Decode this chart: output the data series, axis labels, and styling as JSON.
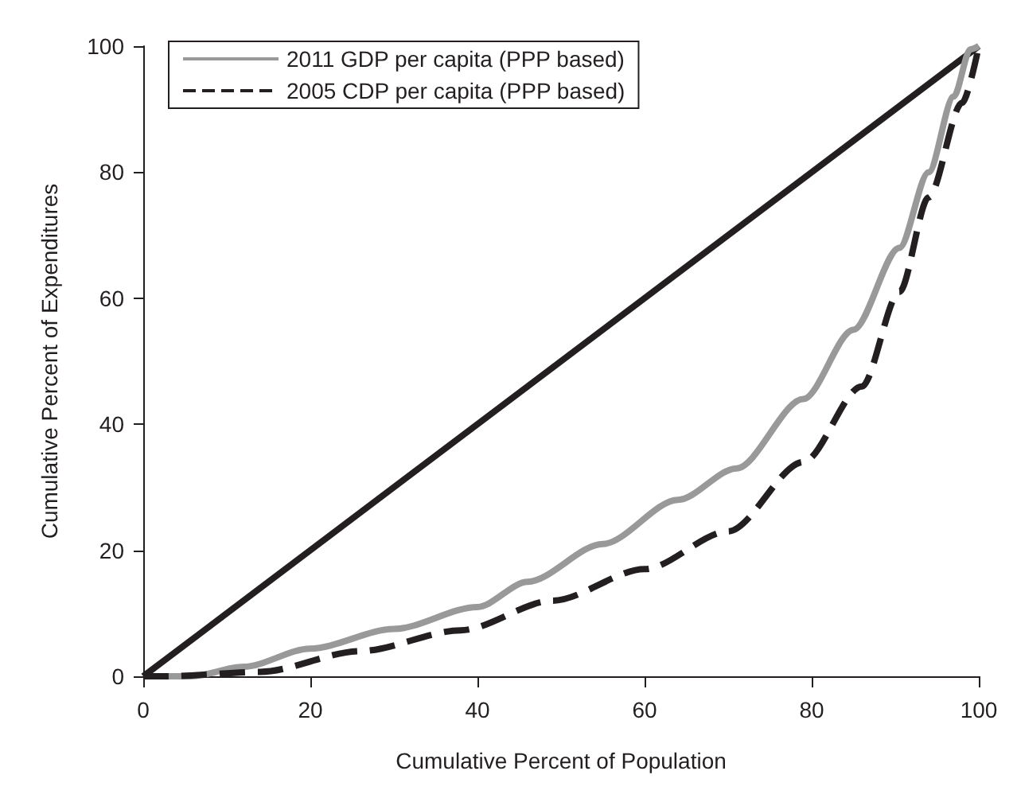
{
  "chart_data": {
    "type": "line",
    "xlabel": "Cumulative Percent of Population",
    "ylabel": "Cumulative Percent of Expenditures",
    "xlim": [
      0,
      100
    ],
    "ylim": [
      0,
      100
    ],
    "xticks": [
      0,
      20,
      40,
      60,
      80,
      100
    ],
    "yticks": [
      0,
      20,
      40,
      60,
      80,
      100
    ],
    "grid": false,
    "legend": "top left",
    "marker": "none",
    "series": [
      {
        "color": "#231f20",
        "line_style": "solid",
        "x": [
          0,
          100
        ],
        "values": [
          0,
          100
        ]
      },
      {
        "name": "2011 GDP per capita (PPP based)",
        "color": "#999999",
        "line_style": "solid",
        "x": [
          0,
          5.7,
          12,
          20,
          30,
          40,
          46,
          55,
          64,
          71,
          79,
          85,
          90.5,
          94,
          97,
          99,
          100
        ],
        "values": [
          0,
          0,
          1.5,
          4.4,
          7.5,
          11,
          15,
          21,
          28,
          33,
          44,
          55,
          68,
          80,
          92,
          99.5,
          100
        ]
      },
      {
        "name": "2005 CDP per capita (PPP based)",
        "color": "#231f20",
        "line_style": "dashed",
        "x": [
          0,
          2.7,
          14,
          26,
          38,
          49,
          60,
          70,
          79,
          86,
          90.5,
          94,
          98,
          100
        ],
        "values": [
          0,
          0,
          0.7,
          4,
          7.3,
          12,
          17,
          23,
          34,
          46,
          61,
          76,
          91,
          100
        ]
      }
    ]
  }
}
